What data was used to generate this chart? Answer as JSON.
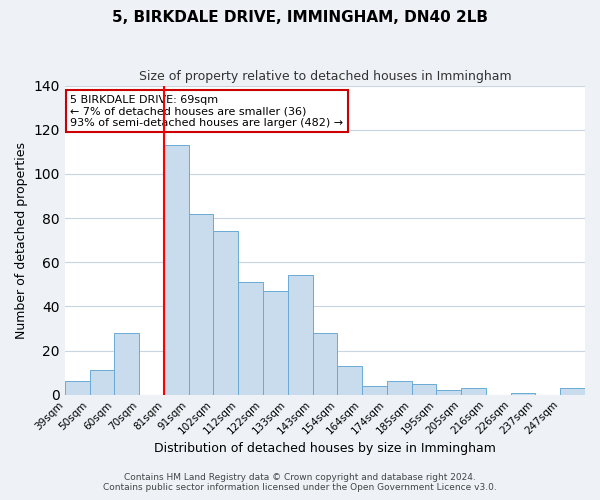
{
  "title": "5, BIRKDALE DRIVE, IMMINGHAM, DN40 2LB",
  "subtitle": "Size of property relative to detached houses in Immingham",
  "xlabel": "Distribution of detached houses by size in Immingham",
  "ylabel": "Number of detached properties",
  "bar_color": "#c8dcee",
  "bar_edge_color": "#6aaad4",
  "categories": [
    "39sqm",
    "50sqm",
    "60sqm",
    "70sqm",
    "81sqm",
    "91sqm",
    "102sqm",
    "112sqm",
    "122sqm",
    "133sqm",
    "143sqm",
    "154sqm",
    "164sqm",
    "174sqm",
    "185sqm",
    "195sqm",
    "205sqm",
    "216sqm",
    "226sqm",
    "237sqm",
    "247sqm"
  ],
  "values": [
    6,
    11,
    28,
    0,
    113,
    82,
    74,
    51,
    47,
    54,
    28,
    13,
    4,
    6,
    5,
    2,
    3,
    0,
    1,
    0,
    3
  ],
  "ylim": [
    0,
    140
  ],
  "yticks": [
    0,
    20,
    40,
    60,
    80,
    100,
    120,
    140
  ],
  "red_line_index": 4,
  "annotation_text": "5 BIRKDALE DRIVE: 69sqm\n← 7% of detached houses are smaller (36)\n93% of semi-detached houses are larger (482) →",
  "annotation_box_color": "#ffffff",
  "annotation_box_edge": "#cc0000",
  "footer1": "Contains HM Land Registry data © Crown copyright and database right 2024.",
  "footer2": "Contains public sector information licensed under the Open Government Licence v3.0.",
  "background_color": "#eef2f7",
  "plot_background_color": "#ffffff",
  "grid_color": "#c8d4e0"
}
